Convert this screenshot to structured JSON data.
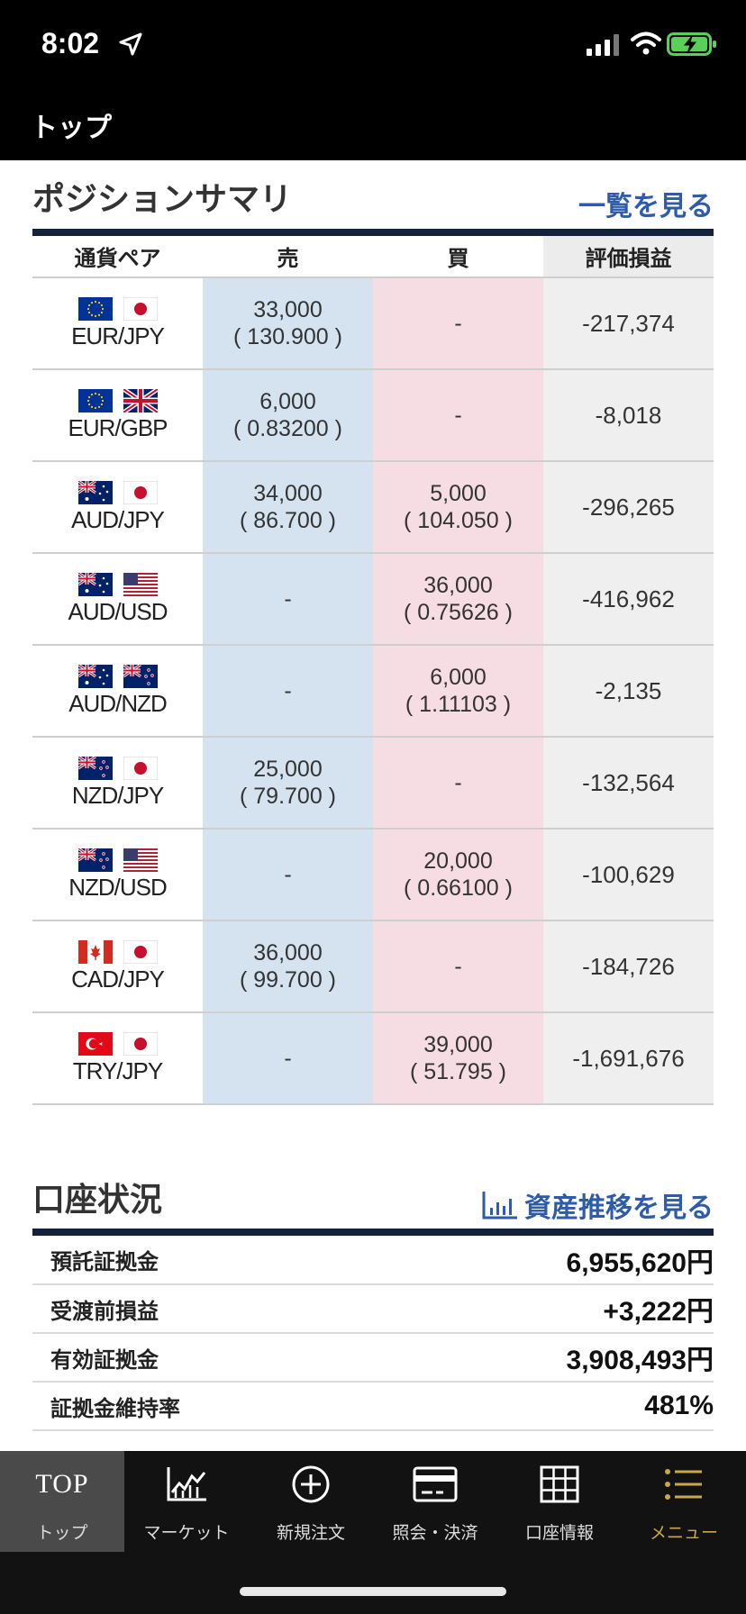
{
  "status_bar": {
    "time": "8:02",
    "icons": [
      "location-arrow-icon",
      "signal-icon",
      "wifi-icon",
      "battery-charging-icon"
    ]
  },
  "header": {
    "title": "トップ"
  },
  "position_summary": {
    "title": "ポジションサマリ",
    "link": "一覧を見る",
    "columns": [
      "通貨ペア",
      "売",
      "買",
      "評価損益"
    ],
    "rows": [
      {
        "flags": [
          "eu",
          "jp"
        ],
        "pair": "EUR/JPY",
        "sell_qty": "33,000",
        "sell_rate": "( 130.900 )",
        "buy_qty": "-",
        "buy_rate": "",
        "pl": "-217,374"
      },
      {
        "flags": [
          "eu",
          "gb"
        ],
        "pair": "EUR/GBP",
        "sell_qty": "6,000",
        "sell_rate": "( 0.83200 )",
        "buy_qty": "-",
        "buy_rate": "",
        "pl": "-8,018"
      },
      {
        "flags": [
          "au",
          "jp"
        ],
        "pair": "AUD/JPY",
        "sell_qty": "34,000",
        "sell_rate": "( 86.700 )",
        "buy_qty": "5,000",
        "buy_rate": "( 104.050 )",
        "pl": "-296,265"
      },
      {
        "flags": [
          "au",
          "us"
        ],
        "pair": "AUD/USD",
        "sell_qty": "-",
        "sell_rate": "",
        "buy_qty": "36,000",
        "buy_rate": "( 0.75626 )",
        "pl": "-416,962"
      },
      {
        "flags": [
          "au",
          "nz"
        ],
        "pair": "AUD/NZD",
        "sell_qty": "-",
        "sell_rate": "",
        "buy_qty": "6,000",
        "buy_rate": "( 1.11103 )",
        "pl": "-2,135"
      },
      {
        "flags": [
          "nz",
          "jp"
        ],
        "pair": "NZD/JPY",
        "sell_qty": "25,000",
        "sell_rate": "( 79.700 )",
        "buy_qty": "-",
        "buy_rate": "",
        "pl": "-132,564"
      },
      {
        "flags": [
          "nz",
          "us"
        ],
        "pair": "NZD/USD",
        "sell_qty": "-",
        "sell_rate": "",
        "buy_qty": "20,000",
        "buy_rate": "( 0.66100 )",
        "pl": "-100,629"
      },
      {
        "flags": [
          "ca",
          "jp"
        ],
        "pair": "CAD/JPY",
        "sell_qty": "36,000",
        "sell_rate": "( 99.700 )",
        "buy_qty": "-",
        "buy_rate": "",
        "pl": "-184,726"
      },
      {
        "flags": [
          "tr",
          "jp"
        ],
        "pair": "TRY/JPY",
        "sell_qty": "-",
        "sell_rate": "",
        "buy_qty": "39,000",
        "buy_rate": "( 51.795 )",
        "pl": "-1,691,676"
      }
    ]
  },
  "account_status": {
    "title": "口座状況",
    "link": "資産推移を見る",
    "link_icon": "bar-chart-icon",
    "rows": [
      {
        "label": "預託証拠金",
        "value": "6,955,620円"
      },
      {
        "label": "受渡前損益",
        "value": "+3,222円"
      },
      {
        "label": "有効証拠金",
        "value": "3,908,493円"
      },
      {
        "label": "証拠金維持率",
        "value": "481%"
      }
    ]
  },
  "tab_bar": {
    "tabs": [
      {
        "icon_text": "TOP",
        "label": "トップ",
        "active": true
      },
      {
        "icon": "market-chart-icon",
        "label": "マーケット"
      },
      {
        "icon": "plus-circle-icon",
        "label": "新規注文"
      },
      {
        "icon": "card-icon",
        "label": "照会・決済"
      },
      {
        "icon": "grid-icon",
        "label": "口座情報"
      },
      {
        "icon": "menu-list-icon",
        "label": "メニュー"
      }
    ]
  },
  "colors": {
    "sell_bg": "#d4e3ef",
    "buy_bg": "#f6dde3",
    "pl_bg": "#efefef",
    "link": "#2f5ca8",
    "accent_menu": "#c9a84c",
    "section_bar": "#14213d"
  }
}
